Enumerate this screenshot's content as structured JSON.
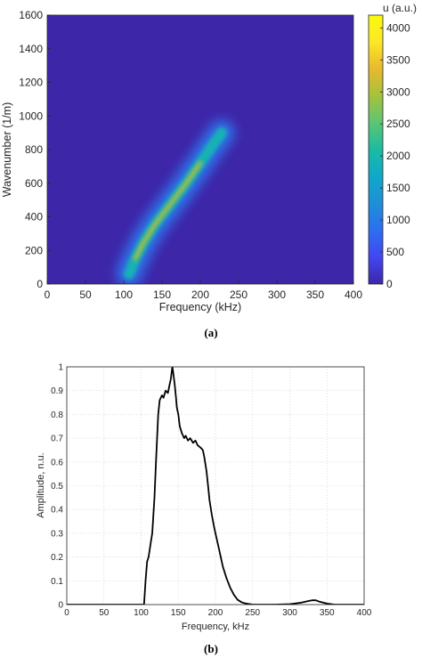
{
  "chart_data": [
    {
      "type": "heatmap",
      "panel_label": "(a)",
      "xlabel": "Frequency (kHz)",
      "ylabel": "Wavenumber (1/m)",
      "xlim": [
        0,
        400
      ],
      "ylim": [
        0,
        1600
      ],
      "xticks": [
        "0",
        "50",
        "100",
        "150",
        "200",
        "250",
        "300",
        "350",
        "400"
      ],
      "yticks": [
        "0",
        "200",
        "400",
        "600",
        "800",
        "1000",
        "1200",
        "1400",
        "1600"
      ],
      "colorbar": {
        "title": "u (a.u.)",
        "range": [
          0,
          4200
        ],
        "ticks": [
          "0",
          "500",
          "1000",
          "1500",
          "2000",
          "2500",
          "3000",
          "3500",
          "4000"
        ],
        "colormap": [
          "#3e26a8",
          "#4346f2",
          "#2d6ff0",
          "#1e8fd8",
          "#10a8c9",
          "#1bbba2",
          "#5cc574",
          "#a5c23c",
          "#e8b82f",
          "#fde725",
          "#f9fb0e"
        ]
      },
      "background_color": "#3e26a8",
      "ridge": {
        "x": [
          107,
          115,
          125,
          140,
          160,
          180,
          200,
          215,
          228
        ],
        "y": [
          60,
          150,
          240,
          350,
          470,
          590,
          720,
          820,
          900
        ],
        "peak_value": 4100
      }
    },
    {
      "type": "line",
      "panel_label": "(b)",
      "xlabel": "Frequency, kHz",
      "ylabel": "Amplitude, n.u.",
      "xlim": [
        0,
        400
      ],
      "ylim": [
        0,
        1
      ],
      "grid": true,
      "xticks": [
        "0",
        "50",
        "100",
        "150",
        "200",
        "250",
        "300",
        "350",
        "400"
      ],
      "yticks": [
        "0",
        "0.1",
        "0.2",
        "0.3",
        "0.4",
        "0.5",
        "0.6",
        "0.7",
        "0.8",
        "0.9",
        "1"
      ],
      "series": [
        {
          "x": [
            0,
            100,
            104,
            106,
            108,
            110,
            112,
            115,
            118,
            120,
            123,
            125,
            128,
            130,
            133,
            136,
            138,
            140,
            142,
            143,
            145,
            147,
            148,
            150,
            152,
            155,
            158,
            160,
            163,
            166,
            170,
            173,
            176,
            180,
            183,
            185,
            188,
            190,
            192,
            195,
            198,
            200,
            205,
            210,
            215,
            220,
            225,
            230,
            235,
            240,
            250,
            260,
            280,
            300,
            315,
            325,
            330,
            335,
            340,
            350,
            360,
            370,
            400
          ],
          "y": [
            0,
            0,
            0,
            0.1,
            0.18,
            0.2,
            0.24,
            0.3,
            0.45,
            0.6,
            0.8,
            0.86,
            0.88,
            0.87,
            0.9,
            0.89,
            0.92,
            0.95,
            1.0,
            0.98,
            0.93,
            0.87,
            0.83,
            0.8,
            0.75,
            0.72,
            0.7,
            0.71,
            0.69,
            0.7,
            0.68,
            0.69,
            0.67,
            0.66,
            0.65,
            0.62,
            0.56,
            0.5,
            0.44,
            0.38,
            0.33,
            0.3,
            0.23,
            0.16,
            0.11,
            0.07,
            0.04,
            0.02,
            0.01,
            0.005,
            0,
            0,
            0,
            0.002,
            0.008,
            0.015,
            0.018,
            0.018,
            0.012,
            0.004,
            0,
            0,
            0
          ],
          "color": "#000000"
        }
      ]
    }
  ]
}
